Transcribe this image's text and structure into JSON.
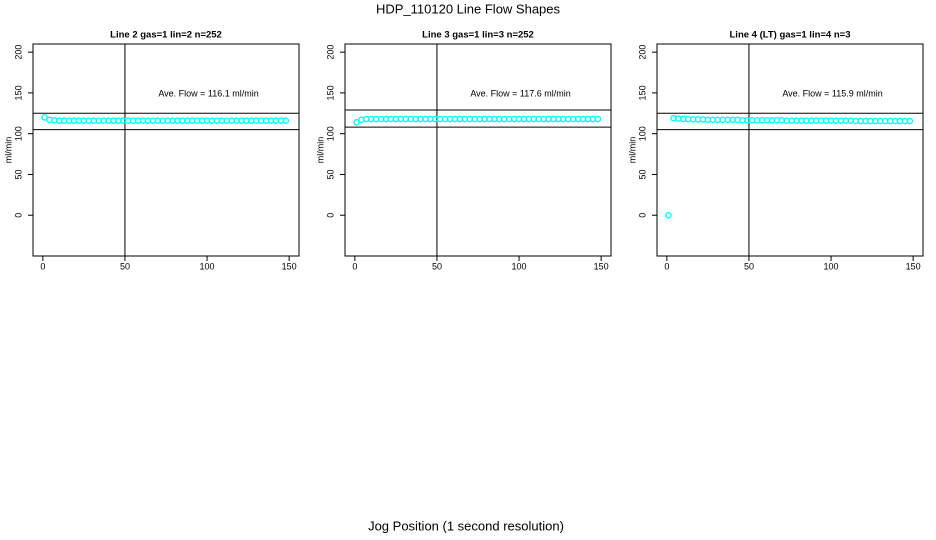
{
  "title": "HDP_110120  Line Flow Shapes",
  "x_label": "Jog Position (1 second resolution)",
  "chart_data": [
    {
      "type": "scatter",
      "title": "Line 2 gas=1 lin=2 n=252",
      "y_label": "ml/min",
      "annotation": "Ave. Flow =  116.1  ml/min",
      "xlim": [
        -6,
        156
      ],
      "ylim": [
        -50,
        210
      ],
      "xticks": [
        0,
        50,
        100,
        150
      ],
      "yticks": [
        0,
        50,
        100,
        150,
        200
      ],
      "hlines": [
        125,
        105
      ],
      "vlines": [
        50
      ],
      "color": "#00ffff",
      "x": [
        1,
        4,
        7,
        10,
        13,
        16,
        19,
        22,
        25,
        28,
        31,
        34,
        37,
        40,
        43,
        46,
        49,
        52,
        55,
        58,
        61,
        64,
        67,
        70,
        73,
        76,
        79,
        82,
        85,
        88,
        91,
        94,
        97,
        100,
        103,
        106,
        109,
        112,
        115,
        118,
        121,
        124,
        127,
        130,
        133,
        136,
        139,
        142,
        145,
        148
      ],
      "values": [
        120,
        117,
        116.5,
        116,
        116,
        116,
        116,
        116,
        116,
        116,
        116,
        116,
        116,
        116,
        116,
        116,
        116,
        116,
        116,
        116,
        116,
        116,
        116,
        116,
        116,
        116,
        116,
        116,
        116,
        116,
        116,
        116,
        116,
        116,
        116,
        116,
        116,
        116,
        116,
        116,
        116,
        116,
        116,
        116,
        116,
        116,
        116,
        116,
        116,
        116
      ]
    },
    {
      "type": "scatter",
      "title": "Line 3 gas=1 lin=3 n=252",
      "y_label": "ml/min",
      "annotation": "Ave. Flow =  117.6  ml/min",
      "xlim": [
        -6,
        156
      ],
      "ylim": [
        -50,
        210
      ],
      "xticks": [
        0,
        50,
        100,
        150
      ],
      "yticks": [
        0,
        50,
        100,
        150,
        200
      ],
      "hlines": [
        129,
        108
      ],
      "vlines": [
        50
      ],
      "color": "#00ffff",
      "x": [
        1,
        4,
        7,
        10,
        13,
        16,
        19,
        22,
        25,
        28,
        31,
        34,
        37,
        40,
        43,
        46,
        49,
        52,
        55,
        58,
        61,
        64,
        67,
        70,
        73,
        76,
        79,
        82,
        85,
        88,
        91,
        94,
        97,
        100,
        103,
        106,
        109,
        112,
        115,
        118,
        121,
        124,
        127,
        130,
        133,
        136,
        139,
        142,
        145,
        148
      ],
      "values": [
        114,
        117,
        118,
        118,
        118,
        118,
        118,
        118,
        118,
        118,
        118,
        118,
        118,
        118,
        118,
        118,
        118,
        118,
        118,
        118,
        118,
        118,
        118,
        118,
        118,
        118,
        118,
        118,
        118,
        118,
        118,
        118,
        118,
        118,
        118,
        118,
        118,
        118,
        118,
        118,
        118,
        118,
        118,
        118,
        118,
        118,
        118,
        118,
        118,
        118
      ]
    },
    {
      "type": "scatter",
      "title": "Line 4 (LT) gas=1 lin=4 n=3",
      "y_label": "ml/min",
      "annotation": "Ave. Flow =  115.9  ml/min",
      "xlim": [
        -6,
        156
      ],
      "ylim": [
        -50,
        210
      ],
      "xticks": [
        0,
        50,
        100,
        150
      ],
      "yticks": [
        0,
        50,
        100,
        150,
        200
      ],
      "hlines": [
        125,
        105
      ],
      "vlines": [
        50
      ],
      "color": "#00ffff",
      "x": [
        1,
        4,
        7,
        10,
        13,
        16,
        19,
        22,
        25,
        28,
        31,
        34,
        37,
        40,
        43,
        46,
        49,
        52,
        55,
        58,
        61,
        64,
        67,
        70,
        73,
        76,
        79,
        82,
        85,
        88,
        91,
        94,
        97,
        100,
        103,
        106,
        109,
        112,
        115,
        118,
        121,
        124,
        127,
        130,
        133,
        136,
        139,
        142,
        145,
        148
      ],
      "values": [
        0,
        119,
        118.5,
        118,
        118,
        117.5,
        117.5,
        117.5,
        117,
        117,
        117,
        117,
        117,
        117,
        117,
        116.5,
        116.5,
        116.5,
        116.5,
        116.5,
        116.5,
        116.5,
        116.5,
        116.5,
        116,
        116,
        116,
        116,
        116,
        116,
        116,
        116,
        116,
        116,
        116,
        116,
        116,
        116,
        115.5,
        115.5,
        115.5,
        115.5,
        115.5,
        115.5,
        115.5,
        115.5,
        115.5,
        115.5,
        115.5,
        115.5
      ]
    }
  ]
}
